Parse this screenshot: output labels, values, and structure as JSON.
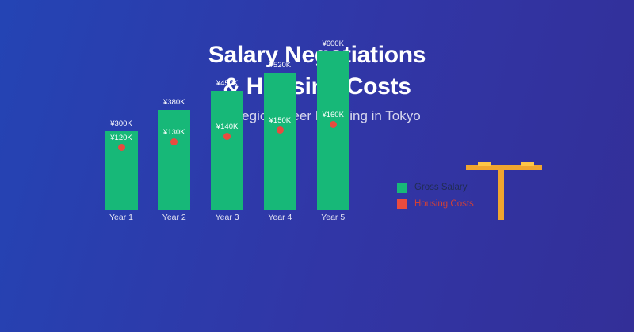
{
  "heading": {
    "title_line1": "Salary Negotiations",
    "title_line2": "& Housing Costs",
    "subtitle": "Strategic Career Planning in Tokyo"
  },
  "legend": {
    "position": "right",
    "items": [
      {
        "label": "Gross Salary",
        "swatch_color": "#17b878",
        "text_color": "#212c54"
      },
      {
        "label": "Housing Costs",
        "swatch_color": "#e94b3f",
        "text_color": "#cf4038"
      }
    ]
  },
  "chart_data": {
    "type": "bar",
    "categories": [
      "Year 1",
      "Year 2",
      "Year 3",
      "Year 4",
      "Year 5"
    ],
    "series": [
      {
        "name": "Gross Salary",
        "type": "bar",
        "values": [
          300,
          380,
          450,
          520,
          600
        ],
        "labels": [
          "¥300K",
          "¥380K",
          "¥450K",
          "¥520K",
          "¥600K"
        ],
        "color": "#17b878"
      },
      {
        "name": "Housing Costs",
        "type": "point",
        "values": [
          120,
          130,
          140,
          150,
          160
        ],
        "labels": [
          "¥120K",
          "¥130K",
          "¥140K",
          "¥150K",
          "¥160K"
        ],
        "color": "#e94b3f"
      }
    ],
    "title": "Salary Negotiations & Housing Costs",
    "subtitle": "Strategic Career Planning in Tokyo",
    "xlabel": "",
    "ylabel": "",
    "unit": "¥K (thousand yen per month)",
    "ylim": [
      0,
      620
    ],
    "grid": false,
    "axes_visible": false,
    "legend_position": "right"
  },
  "icons": {
    "torii_gate": {
      "main_color": "#f0a52f",
      "accent_color": "#fdc545"
    }
  },
  "colors": {
    "background_gradient": [
      "#2444b4",
      "#3136a6",
      "#332f98"
    ],
    "title_text": "#ffffff",
    "subtitle_text": "#d8d8ee",
    "category_text": "#e6e6f5",
    "value_label_text": "#ffffff"
  }
}
